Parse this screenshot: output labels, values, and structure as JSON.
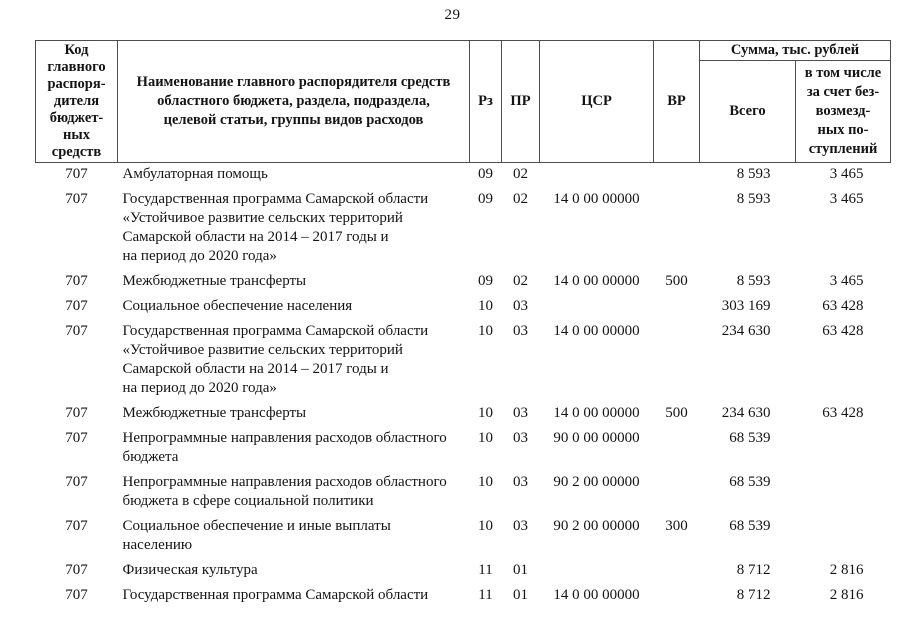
{
  "page": {
    "number": "29"
  },
  "table": {
    "sum_group_label": "Сумма, тыс. рублей",
    "columns": [
      {
        "key": "code",
        "label": "Код\nглавного\nраспоря-\nдителя\nбюджет-\nных\nсредств"
      },
      {
        "key": "name",
        "label": "Наименование главного распорядителя средств\nобластного бюджета, раздела, подраздела,\nцелевой статьи, группы видов расходов"
      },
      {
        "key": "rz",
        "label": "Рз"
      },
      {
        "key": "pr",
        "label": "ПР"
      },
      {
        "key": "csr",
        "label": "ЦСР"
      },
      {
        "key": "vr",
        "label": "ВР"
      },
      {
        "key": "total",
        "label": "Всего"
      },
      {
        "key": "gratuitous",
        "label": "в том числе\nза счет без-\nвозмезд-\nных по-\nступлений"
      }
    ],
    "rows": [
      {
        "code": "707",
        "name": "Амбулаторная помощь",
        "rz": "09",
        "pr": "02",
        "csr": "",
        "vr": "",
        "total": "8 593",
        "gratuitous": "3 465"
      },
      {
        "code": "707",
        "name": "Государственная программа Самарской области\n«Устойчивое развитие сельских территорий\nСамарской области на 2014 – 2017 годы и\nна период до 2020 года»",
        "rz": "09",
        "pr": "02",
        "csr": "14 0 00 00000",
        "vr": "",
        "total": "8 593",
        "gratuitous": "3 465"
      },
      {
        "code": "707",
        "name": "Межбюджетные трансферты",
        "rz": "09",
        "pr": "02",
        "csr": "14 0 00 00000",
        "vr": "500",
        "total": "8 593",
        "gratuitous": "3 465"
      },
      {
        "code": "707",
        "name": "Социальное обеспечение населения",
        "rz": "10",
        "pr": "03",
        "csr": "",
        "vr": "",
        "total": "303 169",
        "gratuitous": "63 428"
      },
      {
        "code": "707",
        "name": "Государственная программа Самарской области\n«Устойчивое развитие сельских территорий\nСамарской области на 2014 – 2017 годы и\nна период до 2020 года»",
        "rz": "10",
        "pr": "03",
        "csr": "14 0 00 00000",
        "vr": "",
        "total": "234 630",
        "gratuitous": "63 428"
      },
      {
        "code": "707",
        "name": "Межбюджетные трансферты",
        "rz": "10",
        "pr": "03",
        "csr": "14 0 00 00000",
        "vr": "500",
        "total": "234 630",
        "gratuitous": "63 428"
      },
      {
        "code": "707",
        "name": "Непрограммные направления расходов областного\nбюджета",
        "rz": "10",
        "pr": "03",
        "csr": "90 0 00 00000",
        "vr": "",
        "total": "68 539",
        "gratuitous": ""
      },
      {
        "code": "707",
        "name": "Непрограммные направления расходов областного\nбюджета в сфере социальной политики",
        "rz": "10",
        "pr": "03",
        "csr": "90 2 00 00000",
        "vr": "",
        "total": "68 539",
        "gratuitous": ""
      },
      {
        "code": "707",
        "name": "Социальное обеспечение и иные выплаты\nнаселению",
        "rz": "10",
        "pr": "03",
        "csr": "90 2 00 00000",
        "vr": "300",
        "total": "68 539",
        "gratuitous": ""
      },
      {
        "code": "707",
        "name": "Физическая культура",
        "rz": "11",
        "pr": "01",
        "csr": "",
        "vr": "",
        "total": "8 712",
        "gratuitous": "2 816"
      },
      {
        "code": "707",
        "name": "Государственная программа Самарской области",
        "rz": "11",
        "pr": "01",
        "csr": "14 0 00 00000",
        "vr": "",
        "total": "8 712",
        "gratuitous": "2 816"
      }
    ]
  }
}
